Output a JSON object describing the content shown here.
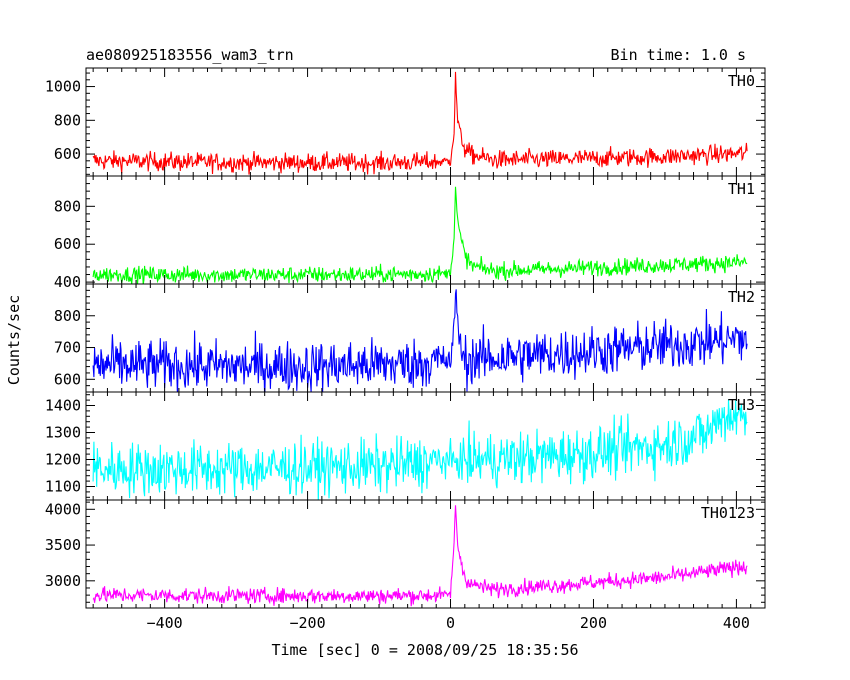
{
  "chart_data": {
    "type": "line",
    "title": "ae080925183556_wam3_trn",
    "bin_time_label": "Bin time: 1.0 s",
    "xlabel": "Time [sec] 0 = 2008/09/25 18:35:56",
    "ylabel": "Counts/sec",
    "xlim": [
      -510,
      440
    ],
    "x_ticks": [
      -400,
      -200,
      0,
      200,
      400
    ],
    "x_tick_labels": [
      "−400",
      "−200",
      "0",
      "200",
      "400"
    ],
    "series_range": [
      -500,
      415
    ],
    "panels": [
      {
        "name": "TH0",
        "color": "#ff0000",
        "ylim": [
          470,
          1110
        ],
        "y_ticks": [
          600,
          800,
          1000
        ],
        "y_tick_labels": [
          "600",
          "800",
          "1000"
        ],
        "profile": {
          "x": [
            -500,
            -300,
            -100,
            -10,
            0,
            2,
            5,
            7,
            10,
            14,
            20,
            30,
            60,
            150,
            300,
            415
          ],
          "y": [
            560,
            550,
            548,
            555,
            560,
            640,
            720,
            1060,
            800,
            720,
            630,
            595,
            565,
            570,
            585,
            605
          ]
        },
        "noise": 28
      },
      {
        "name": "TH1",
        "color": "#00ff00",
        "ylim": [
          390,
          960
        ],
        "y_ticks": [
          400,
          600,
          800
        ],
        "y_tick_labels": [
          "400",
          "600",
          "800"
        ],
        "profile": {
          "x": [
            -500,
            -300,
            -100,
            -10,
            0,
            2,
            5,
            7,
            10,
            14,
            20,
            30,
            60,
            150,
            300,
            415
          ],
          "y": [
            440,
            438,
            440,
            445,
            450,
            530,
            640,
            900,
            720,
            640,
            540,
            485,
            460,
            470,
            490,
            505
          ]
        },
        "noise": 22
      },
      {
        "name": "TH2",
        "color": "#0000ff",
        "ylim": [
          560,
          900
        ],
        "y_ticks": [
          600,
          700,
          800
        ],
        "y_tick_labels": [
          "600",
          "700",
          "800"
        ],
        "profile": {
          "x": [
            -500,
            -200,
            -50,
            -10,
            0,
            3,
            5,
            8,
            12,
            20,
            40,
            150,
            300,
            415
          ],
          "y": [
            645,
            640,
            650,
            660,
            655,
            700,
            760,
            890,
            720,
            660,
            665,
            680,
            705,
            730
          ]
        },
        "noise": 40
      },
      {
        "name": "TH3",
        "color": "#00ffff",
        "ylim": [
          1050,
          1450
        ],
        "y_ticks": [
          1100,
          1200,
          1300,
          1400
        ],
        "y_tick_labels": [
          "1100",
          "1200",
          "1300",
          "1400"
        ],
        "profile": {
          "x": [
            -500,
            -300,
            -100,
            0,
            100,
            200,
            300,
            360,
            380,
            400,
            415
          ],
          "y": [
            1165,
            1165,
            1175,
            1195,
            1205,
            1225,
            1255,
            1300,
            1360,
            1365,
            1350
          ]
        },
        "noise": 50
      },
      {
        "name": "TH0123",
        "color": "#ff00ff",
        "ylim": [
          2620,
          4130
        ],
        "y_ticks": [
          3000,
          3500,
          4000
        ],
        "y_tick_labels": [
          "3000",
          "3500",
          "4000"
        ],
        "profile": {
          "x": [
            -500,
            -300,
            -100,
            -10,
            0,
            2,
            5,
            7,
            10,
            14,
            20,
            30,
            60,
            150,
            300,
            415
          ],
          "y": [
            2800,
            2790,
            2790,
            2800,
            2820,
            3100,
            3500,
            4080,
            3500,
            3300,
            3050,
            2950,
            2880,
            2940,
            3050,
            3210
          ]
        },
        "noise": 55
      }
    ]
  }
}
